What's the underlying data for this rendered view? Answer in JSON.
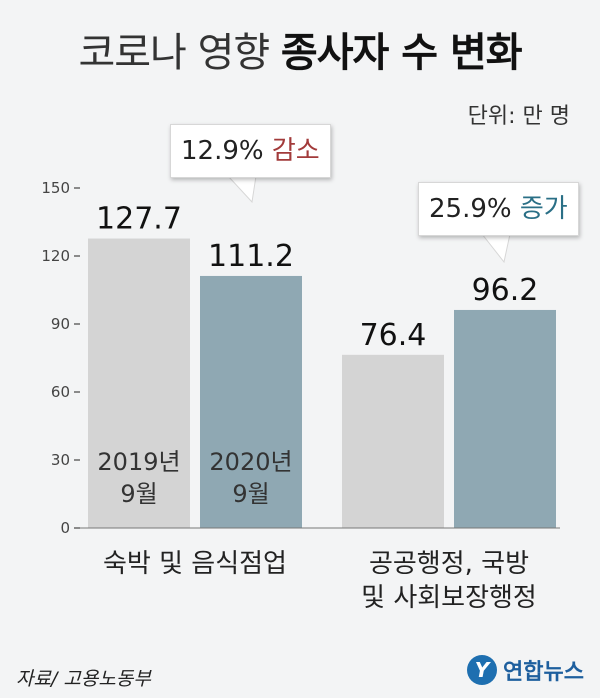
{
  "title": {
    "light": "코로나 영향",
    "bold": "종사자 수 변화"
  },
  "unit": "단위: 만 명",
  "callouts": [
    {
      "value": "12.9%",
      "word": "감소",
      "type": "decrease"
    },
    {
      "value": "25.9%",
      "word": "증가",
      "type": "increase"
    }
  ],
  "source": "자료/ 고용노동부",
  "logo": {
    "mark": "Y",
    "text": "연합뉴스"
  },
  "colors": {
    "series_2019": "#d4d4d4",
    "series_2020": "#8fa8b3",
    "decrease": "#a23a3a",
    "increase": "#2a6f86",
    "logo": "#1e6fb0"
  },
  "chart_data": {
    "type": "bar",
    "categories": [
      "숙박 및 음식점업",
      "공공행정, 국방 및 사회보장행정"
    ],
    "category_lines": [
      [
        "숙박 및 음식점업"
      ],
      [
        "공공행정, 국방",
        "및 사회보장행정"
      ]
    ],
    "series": [
      {
        "name": "2019년 9월",
        "label_lines": [
          "2019년",
          "9월"
        ],
        "values": [
          127.7,
          76.4
        ],
        "labels": [
          "127.7",
          "76.4"
        ]
      },
      {
        "name": "2020년 9월",
        "label_lines": [
          "2020년",
          "9월"
        ],
        "values": [
          111.2,
          96.2
        ],
        "labels": [
          "111.2",
          "96.2"
        ]
      }
    ],
    "yticks": [
      0,
      30,
      60,
      90,
      120,
      150
    ],
    "ylim": [
      0,
      150
    ],
    "xlabel": "",
    "ylabel": "",
    "grid": false,
    "legend": "inside first group bars"
  }
}
